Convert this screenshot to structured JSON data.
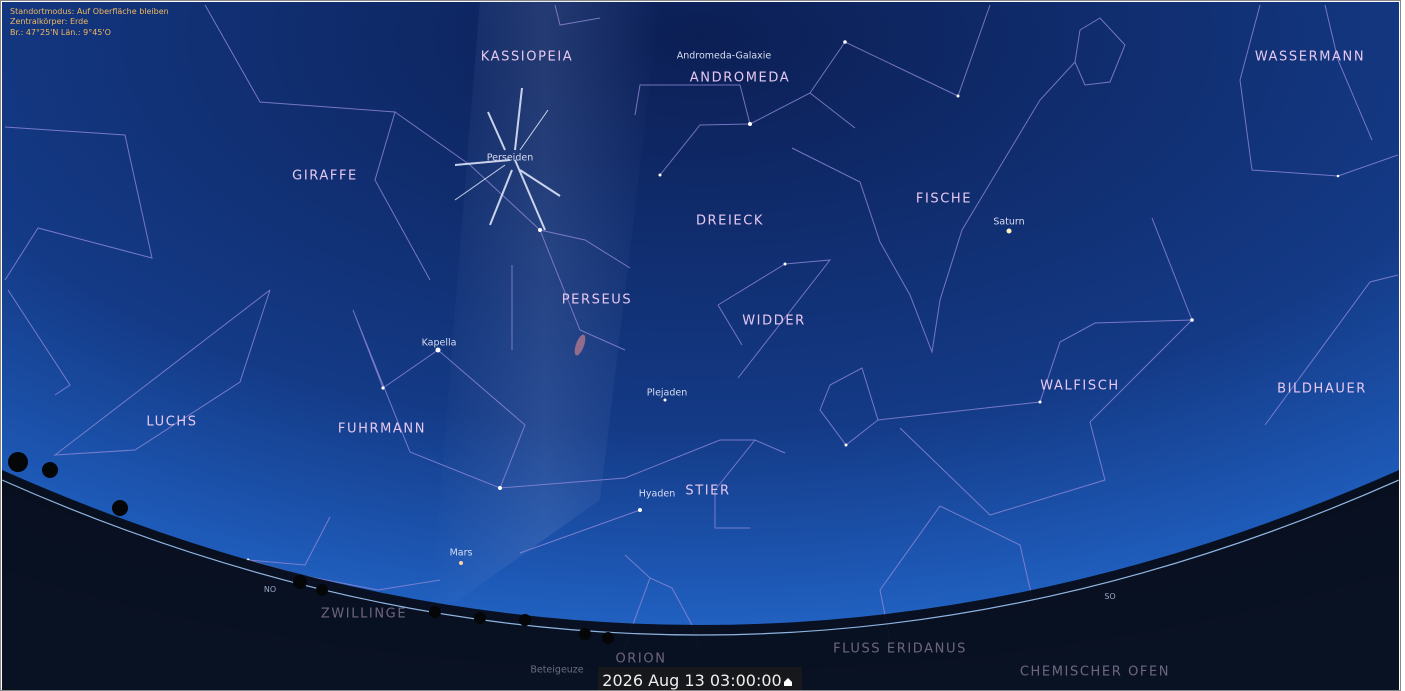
{
  "info": [
    "Standortmodus: Auf Oberfläche bleiben",
    "Zentralkörper: Erde",
    "Br.: 47°25'N  Län.: 9°45'O"
  ],
  "constellations": [
    "KASSIOPEIA",
    "ANDROMEDA",
    "WASSERMANN",
    "GIRAFFE",
    "FISCHE",
    "DREIECK",
    "PERSEUS",
    "WIDDER",
    "WALFISCH",
    "BILDHAUER",
    "LUCHS",
    "FUHRMANN",
    "STIER",
    "ZWILLINGE",
    "ORION",
    "FLUSS ERIDANUS",
    "CHEMISCHER OFEN"
  ],
  "objects": [
    "Andromeda-Galaxie",
    "Perseiden",
    "Saturn",
    "Kapella",
    "Plejaden",
    "Hyaden",
    "Mars",
    "Beteigeuze"
  ],
  "horizon": [
    "NO",
    "SO"
  ],
  "date": "2026 Aug 13 03:00:00"
}
